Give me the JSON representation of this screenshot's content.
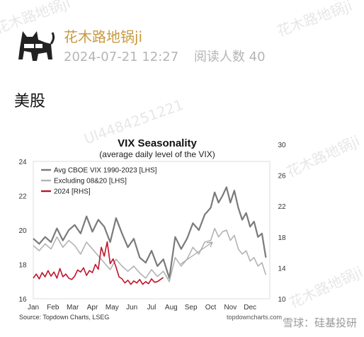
{
  "post": {
    "author": "花木路地锅ji",
    "timestamp": "2024-07-21 12:27",
    "read_count_label": "阅读人数 40",
    "section_title": "美股"
  },
  "watermarks": [
    "花木路地锅ji",
    "花木路地锅ji",
    "花木路地锅ji",
    "Ul4484251221",
    "花木路地锅ji"
  ],
  "footer": {
    "label": "雪球：硅基投研"
  },
  "chart_data": {
    "type": "line",
    "title": "VIX Seasonality",
    "subtitle": "(average daily level of the VIX)",
    "months": [
      "Jan",
      "Feb",
      "Mar",
      "Apr",
      "May",
      "Jun",
      "Jul",
      "Aug",
      "Sep",
      "Oct",
      "Nov",
      "Dec"
    ],
    "left_axis": {
      "label": "LHS",
      "ticks": [
        "24",
        "22",
        "20",
        "18",
        "16"
      ],
      "ylim": [
        16,
        24
      ]
    },
    "right_axis": {
      "label": "RHS",
      "ticks": [
        "30",
        "26",
        "22",
        "18",
        "14",
        "10"
      ],
      "ylim": [
        10,
        30
      ]
    },
    "source": "Source: Topdown Charts, LSEG",
    "website": "topdowncharts.com",
    "series": [
      {
        "name": "Avg CBOE VIX 1990-2023 [LHS]",
        "color": "#7a7a7a",
        "axis": "left",
        "x": [
          0.0,
          0.3,
          0.6,
          0.9,
          1.2,
          1.5,
          1.8,
          2.1,
          2.4,
          2.7,
          3.0,
          3.3,
          3.6,
          3.9,
          4.2,
          4.5,
          4.8,
          5.1,
          5.4,
          5.7,
          6.0,
          6.3,
          6.6,
          6.9,
          7.2,
          7.5,
          7.8,
          8.1,
          8.4,
          8.7,
          9.0,
          9.2,
          9.4,
          9.6,
          9.8,
          10.0,
          10.2,
          10.4,
          10.6,
          10.8,
          11.0,
          11.2,
          11.4,
          11.6,
          11.8
        ],
        "y": [
          19.5,
          19.2,
          19.6,
          19.3,
          20.1,
          19.4,
          20.0,
          20.3,
          19.8,
          20.8,
          19.9,
          20.6,
          20.2,
          19.3,
          20.7,
          19.8,
          19.0,
          19.5,
          18.4,
          18.1,
          18.8,
          17.9,
          18.3,
          17.2,
          19.6,
          18.9,
          19.5,
          20.4,
          20.0,
          20.9,
          21.3,
          22.2,
          21.6,
          22.0,
          22.5,
          21.6,
          22.3,
          21.3,
          20.6,
          21.0,
          20.2,
          20.5,
          19.6,
          19.8,
          18.4
        ]
      },
      {
        "name": "Excluding 08&20 [LHS]",
        "color": "#b3b3b3",
        "axis": "left",
        "x": [
          0.0,
          0.3,
          0.6,
          0.9,
          1.2,
          1.5,
          1.8,
          2.1,
          2.4,
          2.7,
          3.0,
          3.3,
          3.6,
          3.9,
          4.2,
          4.5,
          4.8,
          5.1,
          5.4,
          5.7,
          6.0,
          6.3,
          6.6,
          6.9,
          7.2,
          7.5,
          7.8,
          8.1,
          8.4,
          8.7,
          9.0,
          9.2,
          9.4,
          9.6,
          9.8,
          10.0,
          10.2,
          10.4,
          10.6,
          10.8,
          11.0,
          11.2,
          11.4,
          11.6,
          11.8
        ],
        "y": [
          19.1,
          18.8,
          19.2,
          18.9,
          19.6,
          19.0,
          19.4,
          19.1,
          18.6,
          19.3,
          18.9,
          18.5,
          18.1,
          17.7,
          18.3,
          17.9,
          17.6,
          17.9,
          17.5,
          17.2,
          17.7,
          17.3,
          17.6,
          17.0,
          18.4,
          17.9,
          18.3,
          19.0,
          18.6,
          19.3,
          19.4,
          20.1,
          19.6,
          19.9,
          20.0,
          19.4,
          19.7,
          18.9,
          18.6,
          18.8,
          18.2,
          18.4,
          17.9,
          18.1,
          17.4
        ]
      },
      {
        "name": "2024 [RHS]",
        "color": "#c0142a",
        "axis": "right",
        "x": [
          0.0,
          0.15,
          0.3,
          0.45,
          0.6,
          0.75,
          0.9,
          1.05,
          1.2,
          1.35,
          1.5,
          1.65,
          1.8,
          1.95,
          2.1,
          2.25,
          2.4,
          2.55,
          2.7,
          2.85,
          3.0,
          3.15,
          3.3,
          3.45,
          3.6,
          3.75,
          3.9,
          4.05,
          4.2,
          4.35,
          4.5,
          4.65,
          4.8,
          4.95,
          5.1,
          5.25,
          5.4,
          5.55,
          5.7,
          5.85,
          6.0,
          6.15,
          6.3,
          6.45,
          6.6
        ],
        "y": [
          13.0,
          13.6,
          12.9,
          13.8,
          13.2,
          14.1,
          13.3,
          13.9,
          13.0,
          14.4,
          13.2,
          13.6,
          13.0,
          12.8,
          13.3,
          14.2,
          13.9,
          14.5,
          13.4,
          14.1,
          13.8,
          15.0,
          14.3,
          17.5,
          16.2,
          18.3,
          15.1,
          15.8,
          14.6,
          13.2,
          12.9,
          12.3,
          12.7,
          12.1,
          12.6,
          12.3,
          12.8,
          12.1,
          12.5,
          12.2,
          12.9,
          12.4,
          12.5,
          12.8,
          13.1
        ]
      }
    ]
  }
}
